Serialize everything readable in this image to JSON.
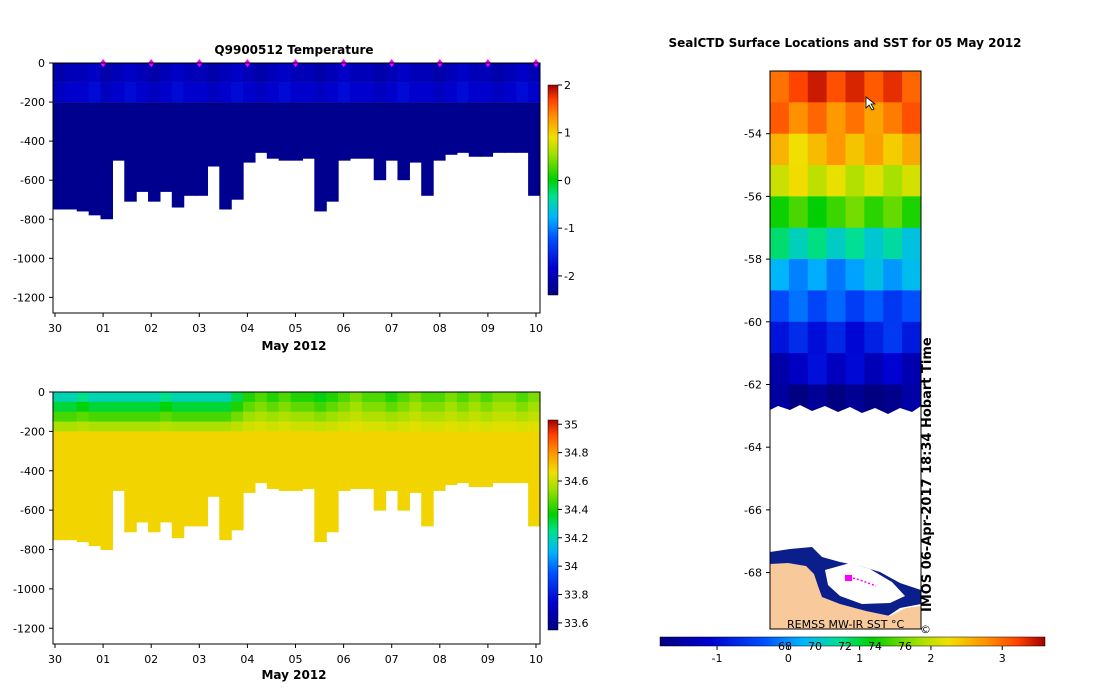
{
  "colors": {
    "deep_blue": "#0a1e8c",
    "white": "#ffffff",
    "land": "#f7c99b",
    "marker": "#ff00ff"
  },
  "chart_data": [
    {
      "type": "heatmap",
      "title": "Q9900512  Temperature",
      "xlabel": "May 2012",
      "x_ticks": [
        "30",
        "01",
        "02",
        "03",
        "04",
        "05",
        "06",
        "07",
        "08",
        "09",
        "10"
      ],
      "y_ticks": [
        "0",
        "-200",
        "-400",
        "-600",
        "-800",
        "-1000",
        "-1200"
      ],
      "ylim": [
        -1280,
        0
      ],
      "colorbar_ticks": [
        "2",
        "1",
        "0",
        "-1",
        "-2"
      ],
      "colorbar_range": [
        -2.4,
        2
      ],
      "profile_max_depth_m": [
        750,
        750,
        760,
        780,
        800,
        500,
        710,
        660,
        710,
        660,
        740,
        680,
        680,
        530,
        750,
        700,
        510,
        460,
        490,
        500,
        500,
        490,
        760,
        710,
        500,
        490,
        490,
        600,
        500,
        600,
        510,
        680,
        500,
        470,
        460,
        480,
        480,
        460,
        460,
        460,
        680
      ],
      "upper_layer_temp_c": [
        -2.1,
        -2.0,
        -2.0,
        -1.9,
        -2.1,
        -2.0,
        -1.9,
        -2.0,
        -2.1,
        -2.0,
        -1.9,
        -2.0,
        -2.0,
        -2.1,
        -2.0,
        -1.9,
        -2.0,
        -2.1,
        -2.0,
        -1.9,
        -2.0,
        -2.0,
        -2.1,
        -2.0,
        -1.9,
        -2.0,
        -2.0,
        -2.1,
        -2.0,
        -1.9,
        -2.0,
        -2.0,
        -2.1,
        -2.0,
        -1.9,
        -2.0,
        -2.0,
        -2.1,
        -2.0,
        -1.9,
        -2.0
      ],
      "deep_layer_temp_c": [
        -2.3,
        -2.3,
        -2.3,
        -2.3,
        -2.3,
        -2.3,
        -2.3,
        -2.3,
        -2.3,
        -2.3,
        -2.3,
        -2.3,
        -2.3,
        -2.3,
        -2.3,
        -2.3,
        -2.3,
        -2.3,
        -2.3,
        -2.3,
        -2.3,
        -2.3,
        -2.3,
        -2.3,
        -2.3,
        -2.3,
        -2.3,
        -2.3,
        -2.3,
        -2.3,
        -2.3,
        -2.3,
        -2.3,
        -2.3,
        -2.3,
        -2.3,
        -2.3,
        -2.3,
        -2.3,
        -2.3,
        -2.3
      ],
      "surface_markers_day": [
        1,
        2,
        3,
        4,
        5,
        6,
        7,
        8,
        9,
        10
      ]
    },
    {
      "type": "heatmap",
      "title": "",
      "xlabel": "May 2012",
      "x_ticks": [
        "30",
        "01",
        "02",
        "03",
        "04",
        "05",
        "06",
        "07",
        "08",
        "09",
        "10"
      ],
      "y_ticks": [
        "0",
        "-200",
        "-400",
        "-600",
        "-800",
        "-1000",
        "-1200"
      ],
      "ylim": [
        -1280,
        0
      ],
      "colorbar_ticks": [
        "35",
        "34.8",
        "34.6",
        "34.4",
        "34.2",
        "34",
        "33.8",
        "33.6"
      ],
      "colorbar_range": [
        33.55,
        35.03
      ],
      "profile_max_depth_m": [
        750,
        750,
        760,
        780,
        800,
        500,
        710,
        660,
        710,
        660,
        740,
        680,
        680,
        530,
        750,
        700,
        510,
        460,
        490,
        500,
        500,
        490,
        760,
        710,
        500,
        490,
        490,
        600,
        500,
        600,
        510,
        680,
        500,
        470,
        460,
        480,
        480,
        460,
        460,
        460,
        680
      ],
      "surface_salinity_psu": [
        34.2,
        34.2,
        34.25,
        34.2,
        34.2,
        34.2,
        34.2,
        34.2,
        34.2,
        34.25,
        34.2,
        34.2,
        34.2,
        34.2,
        34.2,
        34.3,
        34.4,
        34.45,
        34.4,
        34.45,
        34.4,
        34.4,
        34.35,
        34.4,
        34.45,
        34.5,
        34.45,
        34.45,
        34.4,
        34.45,
        34.5,
        34.45,
        34.45,
        34.5,
        34.45,
        34.5,
        34.45,
        34.5,
        34.5,
        34.45,
        34.5
      ],
      "deep_salinity_psu": 34.68
    },
    {
      "type": "heatmap",
      "title": "SealCTD Surface Locations and SST for 05 May 2012",
      "y_ticks": [
        "-54",
        "-56",
        "-58",
        "-60",
        "-62",
        "-64",
        "-66",
        "-68"
      ],
      "ylim": [
        -69.8,
        -52.0
      ],
      "colorbar_ticks": [
        "-1",
        "0",
        "1",
        "2",
        "3"
      ],
      "colorbar_range": [
        -1.8,
        3.6
      ],
      "colorbar_label": "REMSS MW-IR SST °C",
      "secondary_ticks": [
        "68",
        "70",
        "72",
        "74",
        "76"
      ],
      "sst_rows": [
        {
          "lat": -52.5,
          "sst": 3.2
        },
        {
          "lat": -53.5,
          "sst": 2.9
        },
        {
          "lat": -54.5,
          "sst": 2.5
        },
        {
          "lat": -55.5,
          "sst": 2.1
        },
        {
          "lat": -56.5,
          "sst": 1.4
        },
        {
          "lat": -57.5,
          "sst": 0.6
        },
        {
          "lat": -58.5,
          "sst": 0.1
        },
        {
          "lat": -59.5,
          "sst": -0.4
        },
        {
          "lat": -60.5,
          "sst": -0.8
        },
        {
          "lat": -61.5,
          "sst": -1.2
        },
        {
          "lat": -62.5,
          "sst": -1.7
        }
      ],
      "stamp": "IMOS 06-Apr-2017 18:34 Hobart Time",
      "copyright": "©"
    }
  ]
}
